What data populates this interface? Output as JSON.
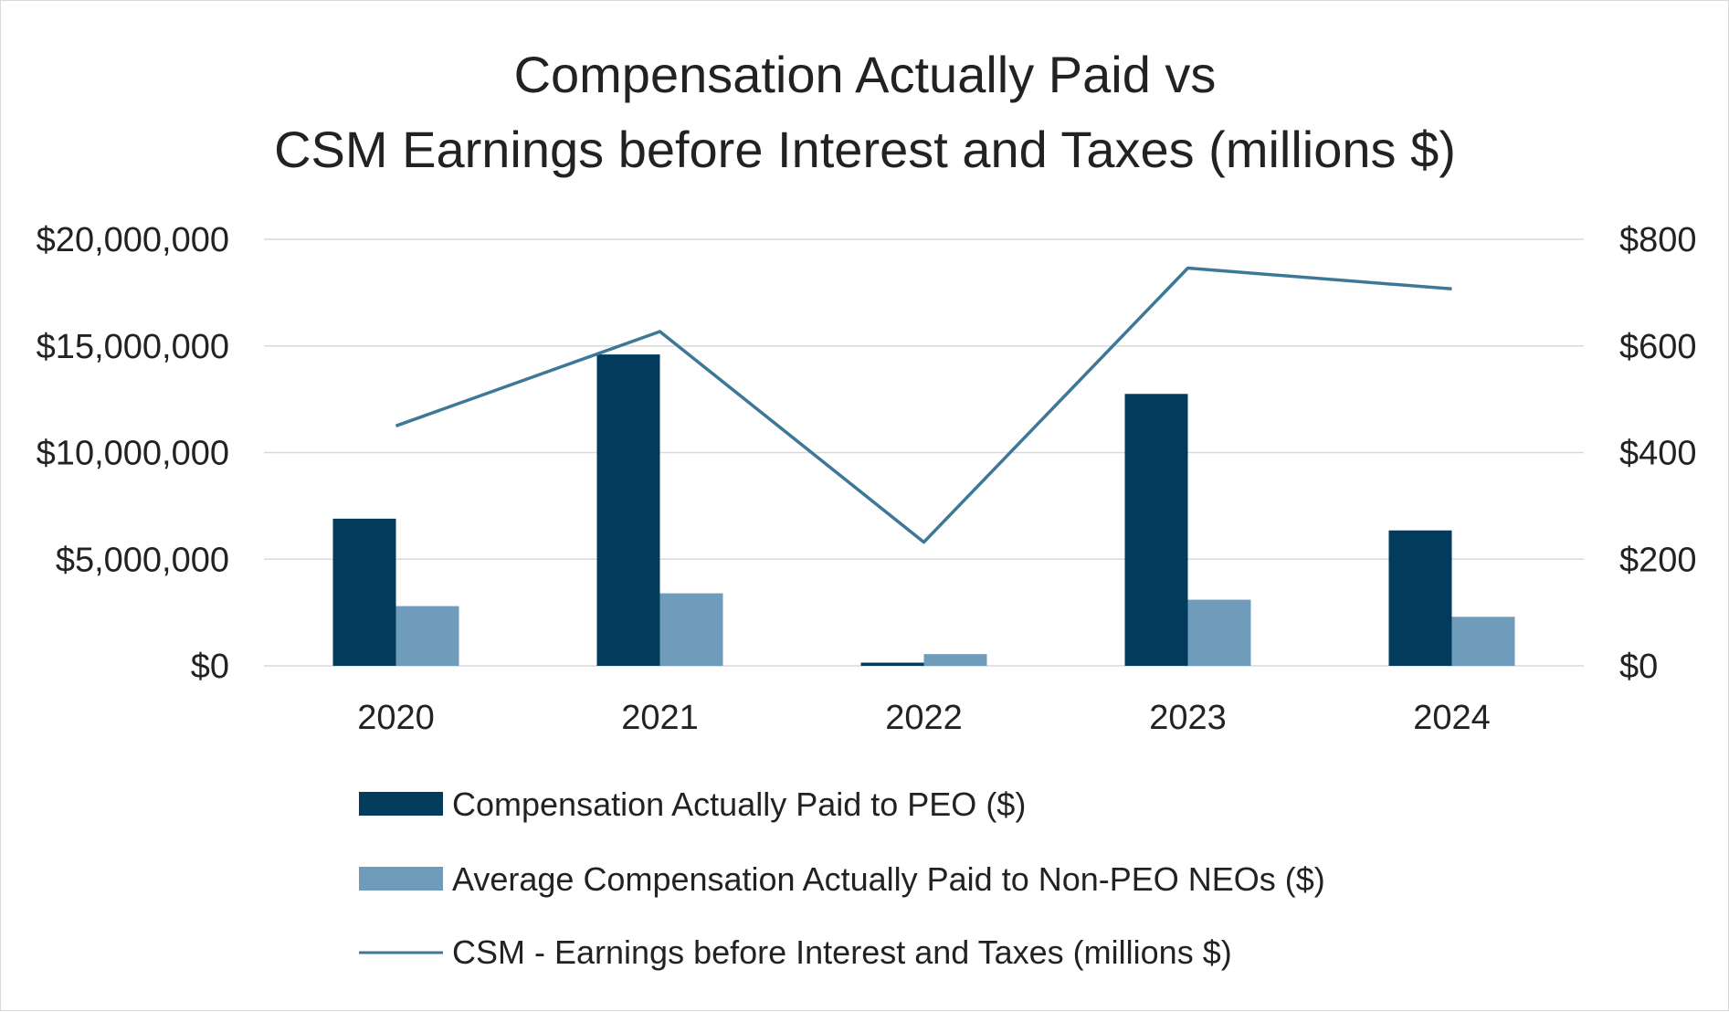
{
  "chart_data": {
    "type": "bar",
    "title_lines": [
      "Compensation Actually Paid vs",
      "CSM Earnings before Interest and Taxes (millions $)"
    ],
    "categories": [
      "2020",
      "2021",
      "2022",
      "2023",
      "2024"
    ],
    "series": [
      {
        "name": "Compensation Actually Paid to PEO ($)",
        "type": "bar",
        "axis": "left",
        "color": "#023b5c",
        "values": [
          6900000,
          14600000,
          150000,
          12750000,
          6350000
        ]
      },
      {
        "name": "Average Compensation Actually Paid to Non-PEO NEOs ($)",
        "type": "bar",
        "axis": "left",
        "color": "#6f9cba",
        "values": [
          2800000,
          3400000,
          550000,
          3100000,
          2300000
        ]
      },
      {
        "name": "CSM - Earnings before Interest and Taxes (millions $)",
        "type": "line",
        "axis": "right",
        "color": "#3e7898",
        "values": [
          450,
          627,
          232,
          746,
          707
        ]
      }
    ],
    "y_left": {
      "min": 0,
      "max": 20000000,
      "ticks": [
        0,
        5000000,
        10000000,
        15000000,
        20000000
      ],
      "tick_labels": [
        "$0",
        "$5,000,000",
        "$10,000,000",
        "$15,000,000",
        "$20,000,000"
      ]
    },
    "y_right": {
      "min": 0,
      "max": 800,
      "ticks": [
        0,
        200,
        400,
        600,
        800
      ],
      "tick_labels": [
        "$0",
        "$200",
        "$400",
        "$600",
        "$800"
      ]
    },
    "grid": true,
    "legend_position": "bottom"
  }
}
